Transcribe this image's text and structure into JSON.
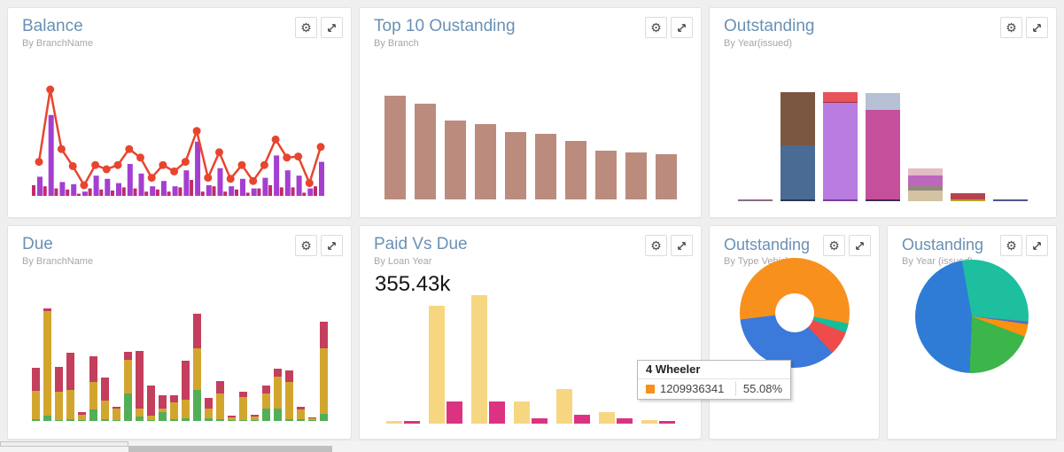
{
  "page": {
    "background": "#f0eff0"
  },
  "icons": {
    "gear": "⚙",
    "expand": "expand-arrows-icon"
  },
  "panels": [
    {
      "title": "Balance",
      "subtitle": "By BranchName"
    },
    {
      "title": "Top 10 Oustanding",
      "subtitle": "By Branch"
    },
    {
      "title": "Outstanding",
      "subtitle": "By Year(issued)"
    },
    {
      "title": "Due",
      "subtitle": "By BranchName"
    },
    {
      "title": "Paid Vs Due",
      "subtitle": "By Loan Year",
      "big_number": "355.43k"
    },
    {
      "title": "Outstanding",
      "subtitle": "By Type Vehicle"
    },
    {
      "title": "Oustanding",
      "subtitle": "By Year (issued)"
    }
  ],
  "tooltip": {
    "title": "4 Wheeler",
    "value": "1209936341",
    "percent": "55.08%",
    "swatch_color": "#f8901d"
  },
  "chart_data": [
    {
      "id": "balance",
      "type": "combo-line-bar",
      "title": "Balance",
      "xlabel": "BranchName",
      "units": "relative 0-100 (no axis labels shown)",
      "line": {
        "name": "balance-line",
        "color": "#e8452f",
        "values": [
          32,
          100,
          44,
          28,
          10,
          29,
          25,
          29,
          44,
          36,
          17,
          29,
          23,
          32,
          61,
          17,
          41,
          16,
          29,
          14,
          29,
          53,
          36,
          37,
          12,
          46
        ]
      },
      "bars": [
        {
          "name": "small-bar-series",
          "color": "#c12a6d",
          "values": [
            10,
            9,
            7,
            6,
            2,
            7,
            6,
            5,
            8,
            7,
            4,
            6,
            4,
            8,
            15,
            4,
            9,
            4,
            6,
            3,
            7,
            10,
            8,
            8,
            3,
            9
          ]
        },
        {
          "name": "tall-bar-series",
          "color": "#a43fd1",
          "values": [
            18,
            76,
            13,
            11,
            4,
            19,
            16,
            12,
            30,
            21,
            9,
            14,
            9,
            24,
            51,
            10,
            26,
            9,
            16,
            7,
            17,
            38,
            24,
            19,
            7,
            32
          ]
        }
      ]
    },
    {
      "id": "top10",
      "type": "bar",
      "title": "Top 10 Oustanding",
      "xlabel": "Branch",
      "color": "#bb8b7e",
      "units": "relative 0-100 (no axis labels shown)",
      "values": [
        100,
        92,
        76,
        73,
        65,
        63,
        56,
        47,
        45,
        44
      ]
    },
    {
      "id": "outstanding-year",
      "type": "stacked-segments",
      "title": "Outstanding",
      "xlabel": "Year(issued)",
      "units": "relative 0-100, segments bottom-to-top",
      "bars": [
        [
          {
            "c": "#8b6b80",
            "v": 2
          }
        ],
        [
          {
            "c": "#2b3550",
            "v": 2
          },
          {
            "c": "#4a6b94",
            "v": 49
          },
          {
            "c": "#7b5740",
            "v": 49
          }
        ],
        [
          {
            "c": "#7a3fa0",
            "v": 2
          },
          {
            "c": "#b97ce0",
            "v": 88
          },
          {
            "c": "#a23040",
            "v": 1
          },
          {
            "c": "#e8525b",
            "v": 9
          }
        ],
        [
          {
            "c": "#3d2a50",
            "v": 2
          },
          {
            "c": "#c64f9b",
            "v": 82
          },
          {
            "c": "#b7c1d6",
            "v": 15
          }
        ],
        [
          {
            "c": "#d3c3a3",
            "v": 10
          },
          {
            "c": "#93897b",
            "v": 4
          },
          {
            "c": "#bd68bd",
            "v": 10
          },
          {
            "c": "#e2bcc6",
            "v": 6
          }
        ],
        [
          {
            "c": "#b5a42c",
            "v": 2
          },
          {
            "c": "#b8424e",
            "v": 5
          }
        ],
        [
          {
            "c": "#4a5a8a",
            "v": 2
          }
        ]
      ]
    },
    {
      "id": "due",
      "type": "stacked-series",
      "title": "Due",
      "xlabel": "BranchName",
      "units": "relative, stacked bottom-to-top green/yellow/red",
      "series": [
        {
          "name": "green",
          "color": "#53ae58",
          "values": [
            2,
            6,
            1,
            2,
            1,
            12,
            2,
            1,
            30,
            5,
            1,
            10,
            2,
            3,
            33,
            3,
            2,
            1,
            1,
            1,
            13,
            13,
            2,
            2,
            1,
            8
          ]
        },
        {
          "name": "yellow",
          "color": "#d2a62e",
          "values": [
            30,
            112,
            30,
            31,
            6,
            30,
            20,
            12,
            36,
            8,
            5,
            3,
            18,
            20,
            45,
            10,
            28,
            3,
            25,
            4,
            17,
            35,
            40,
            10,
            2,
            70
          ]
        },
        {
          "name": "red",
          "color": "#c43e5d",
          "values": [
            25,
            3,
            27,
            40,
            3,
            28,
            25,
            2,
            8,
            62,
            32,
            15,
            8,
            42,
            37,
            12,
            13,
            2,
            5,
            2,
            8,
            8,
            12,
            3,
            1,
            29
          ]
        }
      ]
    },
    {
      "id": "paid-due",
      "type": "grouped-bar",
      "title": "Paid Vs Due",
      "xlabel": "Loan Year",
      "summary": "355.43k",
      "units": "relative 0-100 (no axis labels shown)",
      "series": [
        {
          "name": "Paid",
          "color": "#f7d682",
          "values": [
            2,
            92,
            100,
            17,
            27,
            9,
            3
          ]
        },
        {
          "name": "Due",
          "color": "#dc3282",
          "values": [
            2,
            17,
            17,
            4,
            7,
            4,
            2
          ]
        }
      ]
    },
    {
      "id": "outstanding-vehicle",
      "type": "donut",
      "title": "Outstanding",
      "xlabel": "Type Vehicle",
      "start_deg": 263,
      "slices": [
        {
          "label": "4 Wheeler",
          "value": 55.08,
          "color": "#f8901d"
        },
        {
          "label": "",
          "value": 2.8,
          "color": "#17bc9b"
        },
        {
          "label": "",
          "value": 7.0,
          "color": "#ef4b4b"
        },
        {
          "label": "",
          "value": 35.12,
          "color": "#3b79da"
        }
      ]
    },
    {
      "id": "outstanding-year-pie",
      "type": "pie",
      "title": "Oustanding",
      "xlabel": "Year (issued)",
      "start_deg": 350,
      "slices": [
        {
          "label": "",
          "value": 29.2,
          "color": "#1dbf9e"
        },
        {
          "label": "",
          "value": 0.8,
          "color": "#5b6bbf"
        },
        {
          "label": "",
          "value": 3.6,
          "color": "#f8920f"
        },
        {
          "label": "",
          "value": 19.8,
          "color": "#3cb54a"
        },
        {
          "label": "",
          "value": 46.6,
          "color": "#2e7cd6"
        }
      ]
    }
  ]
}
